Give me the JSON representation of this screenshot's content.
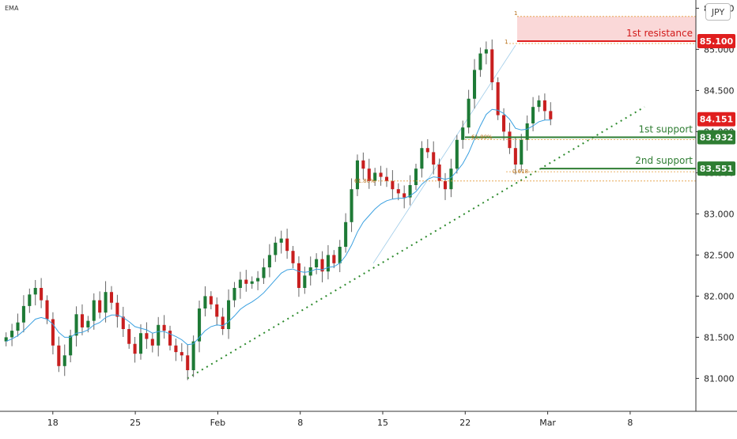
{
  "chart_data": {
    "type": "candlestick",
    "title": "",
    "indicator_label": "EMA",
    "currency_label": "JPY",
    "y_ticks": [
      {
        "value": 81.0,
        "label": "81.000"
      },
      {
        "value": 81.5,
        "label": "81.500"
      },
      {
        "value": 82.0,
        "label": "82.000"
      },
      {
        "value": 82.5,
        "label": "82.500"
      },
      {
        "value": 83.0,
        "label": "83.000"
      },
      {
        "value": 83.5,
        "label": "83.500"
      },
      {
        "value": 84.0,
        "label": "84.000"
      },
      {
        "value": 84.5,
        "label": "84.500"
      },
      {
        "value": 85.0,
        "label": "85.000"
      },
      {
        "value": 85.5,
        "label": "85.500"
      }
    ],
    "ylim": [
      80.6,
      85.6
    ],
    "x_ticks": [
      {
        "label": "18",
        "day": 2
      },
      {
        "label": "25",
        "day": 9
      },
      {
        "label": "Feb",
        "day": 16
      },
      {
        "label": "8",
        "day": 23
      },
      {
        "label": "15",
        "day": 30
      },
      {
        "label": "22",
        "day": 37
      },
      {
        "label": "Mar",
        "day": 44
      },
      {
        "label": "8",
        "day": 51
      }
    ],
    "series_closes": [
      81.5,
      81.58,
      81.68,
      81.88,
      82.02,
      82.1,
      81.95,
      81.72,
      81.4,
      81.15,
      81.28,
      81.52,
      81.78,
      81.62,
      81.7,
      81.95,
      81.8,
      82.05,
      81.92,
      81.75,
      81.6,
      81.42,
      81.3,
      81.55,
      81.48,
      81.4,
      81.65,
      81.58,
      81.4,
      81.32,
      81.28,
      81.1,
      81.45,
      81.85,
      82.0,
      81.9,
      81.75,
      81.6,
      81.95,
      82.1,
      82.2,
      82.15,
      82.18,
      82.22,
      82.35,
      82.5,
      82.65,
      82.7,
      82.55,
      82.4,
      82.1,
      82.25,
      82.35,
      82.45,
      82.3,
      82.5,
      82.4,
      82.6,
      82.9,
      83.3,
      83.65,
      83.55,
      83.4,
      83.5,
      83.45,
      83.4,
      83.3,
      83.25,
      83.2,
      83.35,
      83.55,
      83.8,
      83.75,
      83.6,
      83.4,
      83.3,
      83.55,
      83.9,
      84.05,
      84.4,
      84.75,
      84.95,
      85.0,
      84.6,
      84.2,
      84.0,
      83.8,
      83.6,
      83.9,
      84.1,
      84.3,
      84.38,
      84.25,
      84.15
    ],
    "ema_values": [
      81.45,
      81.48,
      81.52,
      81.58,
      81.65,
      81.72,
      81.74,
      81.72,
      81.66,
      81.56,
      81.5,
      81.5,
      81.55,
      81.56,
      81.59,
      81.65,
      81.68,
      81.74,
      81.77,
      81.77,
      81.74,
      81.69,
      81.63,
      81.61,
      81.59,
      81.55,
      81.57,
      81.57,
      81.54,
      81.51,
      81.47,
      81.41,
      81.42,
      81.5,
      81.58,
      81.63,
      81.65,
      81.64,
      81.69,
      81.76,
      81.84,
      81.89,
      81.93,
      81.98,
      82.04,
      82.12,
      82.2,
      82.28,
      82.32,
      82.33,
      82.3,
      82.29,
      82.3,
      82.33,
      82.32,
      82.35,
      82.36,
      82.4,
      82.49,
      82.62,
      82.78,
      82.9,
      82.98,
      83.06,
      83.12,
      83.16,
      83.18,
      83.19,
      83.19,
      83.22,
      83.27,
      83.36,
      83.42,
      83.45,
      83.44,
      83.42,
      83.44,
      83.52,
      83.61,
      83.74,
      83.91,
      84.07,
      84.21,
      84.27,
      84.26,
      84.22,
      84.15,
      84.04,
      84.02,
      84.03,
      84.07,
      84.12,
      84.14,
      84.14
    ],
    "annotations": {
      "resistance_1": {
        "label": "1st resistance",
        "value": 85.1,
        "price_label": "85.100"
      },
      "current_price": {
        "value": 84.151,
        "price_label": "84.151"
      },
      "support_1": {
        "label": "1st support",
        "value": 83.932,
        "price_label": "83.932"
      },
      "support_2": {
        "label": "2nd support",
        "value": 83.551,
        "price_label": "83.551"
      },
      "fib_upper_label": "1",
      "fib_upper_level_label": "1",
      "fib_1_label": "61.80%",
      "fib_2_label": "61.80%",
      "fib_3_label": "0.618"
    },
    "trendline": {
      "start": {
        "day": 24,
        "value": 81.0
      },
      "end": {
        "day": 50,
        "value": 84.3
      }
    },
    "grid": false,
    "colors": {
      "up": "#1e7a36",
      "down": "#c81f1f",
      "ema": "#3aa0e0",
      "resistance": "#e01e1e",
      "support": "#2e7d32",
      "trend": "#2e8b2e"
    }
  }
}
